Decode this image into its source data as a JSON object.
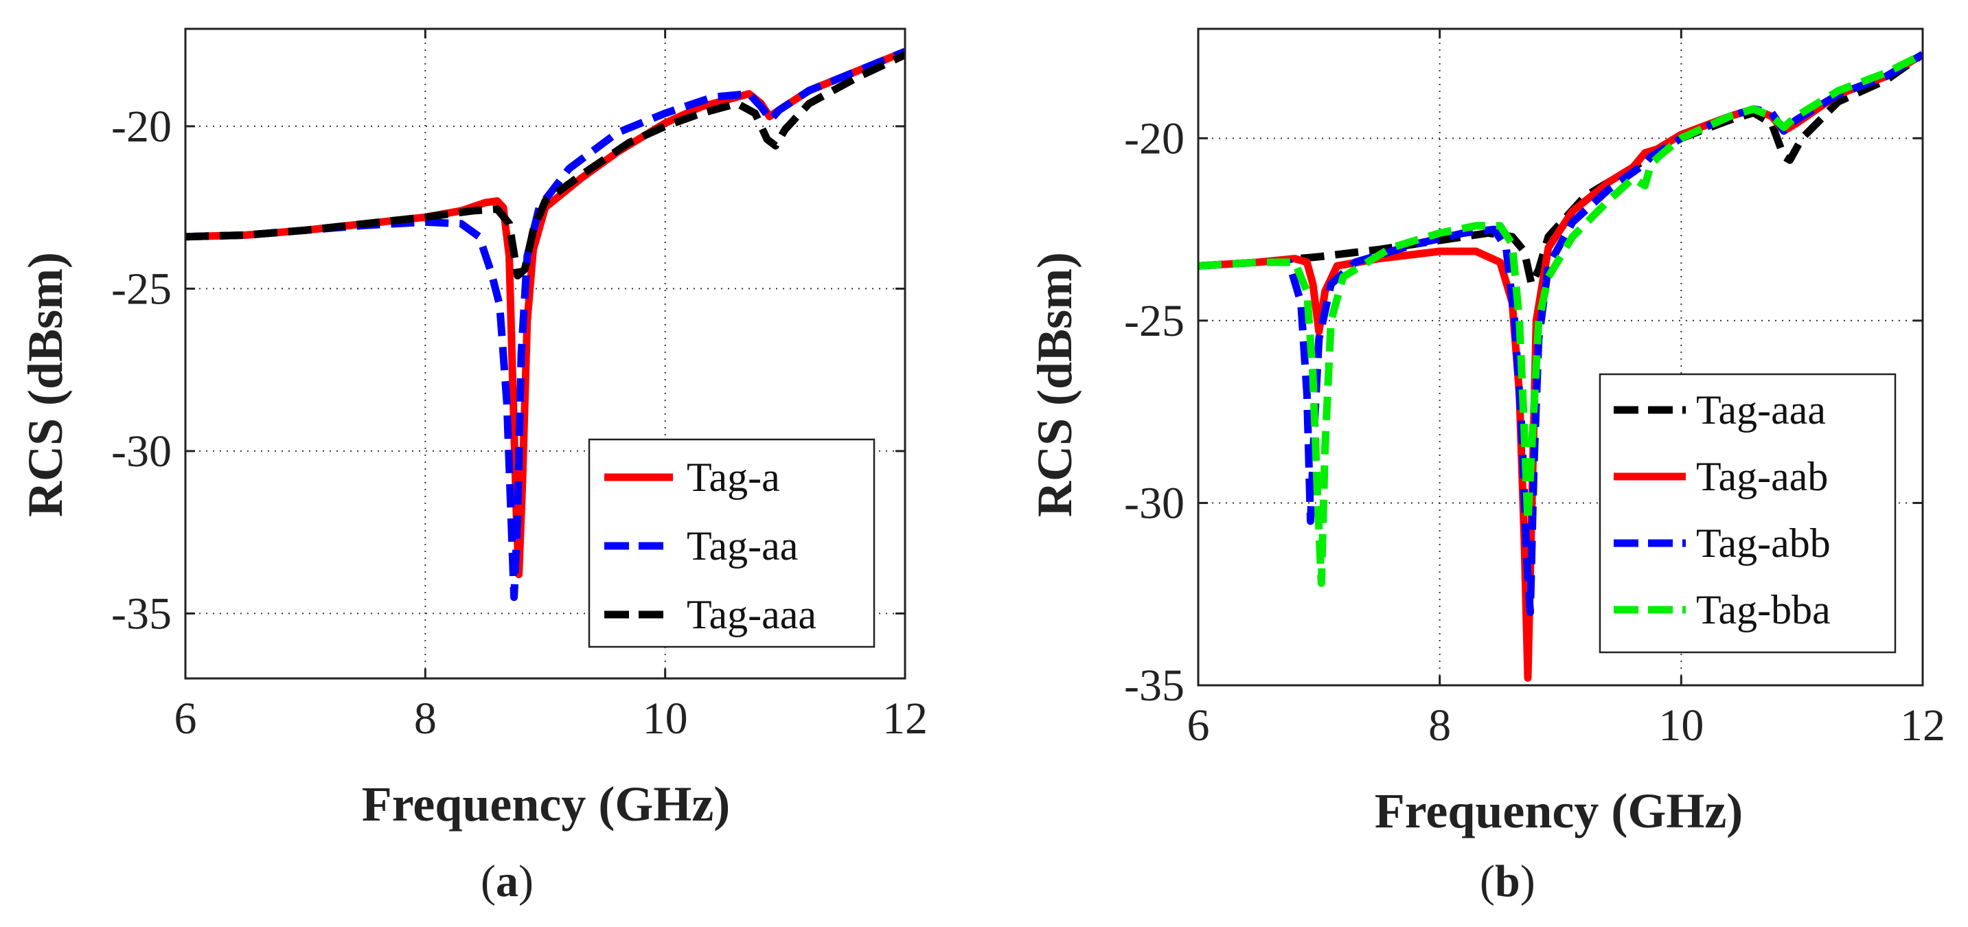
{
  "colors": {
    "red": "#ff0000",
    "blue": "#0000ff",
    "black": "#000000",
    "green": "#00ee00"
  },
  "chart_data": [
    {
      "type": "line",
      "panel_label": "a",
      "xlabel": "Frequency (GHz)",
      "ylabel": "RCS (dBsm)",
      "xlim": [
        6,
        12
      ],
      "ylim": [
        -37,
        -17
      ],
      "xticks": [
        6,
        8,
        10,
        12
      ],
      "yticks": [
        -20,
        -25,
        -30,
        -35
      ],
      "xtick_labels": [
        "6",
        "8",
        "10",
        "12"
      ],
      "ytick_labels": [
        "-20",
        "-25",
        "-30",
        "-35"
      ],
      "grid": true,
      "legend_position": "bottom-right",
      "series": [
        {
          "name": "Tag-a",
          "color": "#ff0000",
          "style": "solid",
          "points": [
            [
              6,
              -23.4
            ],
            [
              6.5,
              -23.35
            ],
            [
              7,
              -23.2
            ],
            [
              7.5,
              -23.0
            ],
            [
              8,
              -22.8
            ],
            [
              8.3,
              -22.6
            ],
            [
              8.5,
              -22.35
            ],
            [
              8.6,
              -22.3
            ],
            [
              8.65,
              -22.5
            ],
            [
              8.7,
              -24.0
            ],
            [
              8.73,
              -28.0
            ],
            [
              8.76,
              -32.0
            ],
            [
              8.78,
              -33.8
            ],
            [
              8.81,
              -31.0
            ],
            [
              8.85,
              -26.0
            ],
            [
              8.9,
              -23.8
            ],
            [
              9.0,
              -22.5
            ],
            [
              9.3,
              -21.6
            ],
            [
              9.6,
              -20.8
            ],
            [
              10.0,
              -19.9
            ],
            [
              10.3,
              -19.4
            ],
            [
              10.6,
              -19.1
            ],
            [
              10.7,
              -19.0
            ],
            [
              10.8,
              -19.3
            ],
            [
              10.87,
              -19.7
            ],
            [
              10.95,
              -19.5
            ],
            [
              11.2,
              -18.9
            ],
            [
              11.6,
              -18.3
            ],
            [
              12,
              -17.7
            ]
          ]
        },
        {
          "name": "Tag-aa",
          "color": "#0000ff",
          "style": "dashed",
          "points": [
            [
              6,
              -23.4
            ],
            [
              6.5,
              -23.35
            ],
            [
              7,
              -23.2
            ],
            [
              7.5,
              -23.05
            ],
            [
              8,
              -22.95
            ],
            [
              8.3,
              -23.0
            ],
            [
              8.45,
              -23.4
            ],
            [
              8.55,
              -24.5
            ],
            [
              8.62,
              -25.5
            ],
            [
              8.68,
              -28.5
            ],
            [
              8.72,
              -32.5
            ],
            [
              8.74,
              -34.5
            ],
            [
              8.77,
              -32.0
            ],
            [
              8.8,
              -27.0
            ],
            [
              8.85,
              -24.0
            ],
            [
              8.95,
              -22.5
            ],
            [
              9.2,
              -21.3
            ],
            [
              9.6,
              -20.2
            ],
            [
              10.0,
              -19.6
            ],
            [
              10.4,
              -19.1
            ],
            [
              10.7,
              -19.0
            ],
            [
              10.8,
              -19.4
            ],
            [
              10.88,
              -19.8
            ],
            [
              10.95,
              -19.5
            ],
            [
              11.2,
              -18.9
            ],
            [
              11.6,
              -18.3
            ],
            [
              12,
              -17.7
            ]
          ]
        },
        {
          "name": "Tag-aaa",
          "color": "#000000",
          "style": "dashed",
          "points": [
            [
              6,
              -23.4
            ],
            [
              6.5,
              -23.35
            ],
            [
              7,
              -23.2
            ],
            [
              7.5,
              -23.0
            ],
            [
              8,
              -22.8
            ],
            [
              8.4,
              -22.6
            ],
            [
              8.6,
              -22.55
            ],
            [
              8.7,
              -23.0
            ],
            [
              8.77,
              -24.6
            ],
            [
              8.83,
              -24.4
            ],
            [
              8.9,
              -23.2
            ],
            [
              9.0,
              -22.3
            ],
            [
              9.3,
              -21.5
            ],
            [
              9.7,
              -20.5
            ],
            [
              10.0,
              -20.0
            ],
            [
              10.3,
              -19.6
            ],
            [
              10.6,
              -19.3
            ],
            [
              10.75,
              -19.6
            ],
            [
              10.85,
              -20.4
            ],
            [
              10.92,
              -20.6
            ],
            [
              11.0,
              -20.1
            ],
            [
              11.2,
              -19.3
            ],
            [
              11.6,
              -18.5
            ],
            [
              12,
              -17.8
            ]
          ]
        }
      ]
    },
    {
      "type": "line",
      "panel_label": "b",
      "xlabel": "Frequency (GHz)",
      "ylabel": "RCS (dBsm)",
      "xlim": [
        6,
        12
      ],
      "ylim": [
        -35,
        -17
      ],
      "xticks": [
        6,
        8,
        10,
        12
      ],
      "yticks": [
        -20,
        -25,
        -30,
        -35
      ],
      "xtick_labels": [
        "6",
        "8",
        "10",
        "12"
      ],
      "ytick_labels": [
        "-20",
        "-25",
        "-30",
        "-35"
      ],
      "grid": true,
      "legend_position": "bottom-right",
      "series": [
        {
          "name": "Tag-aaa",
          "color": "#000000",
          "style": "dashed",
          "points": [
            [
              6,
              -23.5
            ],
            [
              6.5,
              -23.4
            ],
            [
              7,
              -23.25
            ],
            [
              7.5,
              -23.05
            ],
            [
              8,
              -22.8
            ],
            [
              8.4,
              -22.6
            ],
            [
              8.6,
              -22.7
            ],
            [
              8.7,
              -23.1
            ],
            [
              8.76,
              -24.0
            ],
            [
              8.82,
              -23.6
            ],
            [
              8.9,
              -22.7
            ],
            [
              9.2,
              -21.6
            ],
            [
              9.6,
              -20.8
            ],
            [
              10.0,
              -20.0
            ],
            [
              10.4,
              -19.5
            ],
            [
              10.6,
              -19.3
            ],
            [
              10.75,
              -19.6
            ],
            [
              10.85,
              -20.5
            ],
            [
              10.9,
              -20.6
            ],
            [
              11.0,
              -20.0
            ],
            [
              11.3,
              -19.0
            ],
            [
              11.7,
              -18.4
            ],
            [
              12,
              -17.7
            ]
          ]
        },
        {
          "name": "Tag-aab",
          "color": "#ff0000",
          "style": "solid",
          "points": [
            [
              6,
              -23.5
            ],
            [
              6.5,
              -23.4
            ],
            [
              6.8,
              -23.3
            ],
            [
              6.9,
              -23.4
            ],
            [
              6.95,
              -24.0
            ],
            [
              7.0,
              -25.3
            ],
            [
              7.05,
              -24.2
            ],
            [
              7.15,
              -23.5
            ],
            [
              7.5,
              -23.3
            ],
            [
              8.0,
              -23.1
            ],
            [
              8.3,
              -23.1
            ],
            [
              8.5,
              -23.4
            ],
            [
              8.6,
              -24.5
            ],
            [
              8.66,
              -27.0
            ],
            [
              8.7,
              -31.0
            ],
            [
              8.73,
              -34.8
            ],
            [
              8.76,
              -30.5
            ],
            [
              8.8,
              -25.0
            ],
            [
              8.9,
              -23.0
            ],
            [
              9.1,
              -22.0
            ],
            [
              9.4,
              -21.2
            ],
            [
              9.6,
              -20.8
            ],
            [
              9.7,
              -20.4
            ],
            [
              9.8,
              -20.3
            ],
            [
              10.0,
              -19.9
            ],
            [
              10.4,
              -19.4
            ],
            [
              10.6,
              -19.2
            ],
            [
              10.75,
              -19.4
            ],
            [
              10.85,
              -19.8
            ],
            [
              10.95,
              -19.6
            ],
            [
              11.3,
              -18.8
            ],
            [
              11.7,
              -18.3
            ],
            [
              12,
              -17.7
            ]
          ]
        },
        {
          "name": "Tag-abb",
          "color": "#0000ff",
          "style": "dashed",
          "points": [
            [
              6,
              -23.5
            ],
            [
              6.5,
              -23.4
            ],
            [
              6.75,
              -23.4
            ],
            [
              6.85,
              -24.5
            ],
            [
              6.9,
              -27.0
            ],
            [
              6.93,
              -30.5
            ],
            [
              6.96,
              -28.0
            ],
            [
              7.0,
              -25.5
            ],
            [
              7.1,
              -24.0
            ],
            [
              7.3,
              -23.4
            ],
            [
              7.8,
              -22.9
            ],
            [
              8.2,
              -22.6
            ],
            [
              8.45,
              -22.5
            ],
            [
              8.55,
              -23.0
            ],
            [
              8.62,
              -25.0
            ],
            [
              8.68,
              -28.0
            ],
            [
              8.72,
              -31.5
            ],
            [
              8.75,
              -33.0
            ],
            [
              8.78,
              -29.0
            ],
            [
              8.82,
              -25.5
            ],
            [
              8.9,
              -23.5
            ],
            [
              9.1,
              -22.3
            ],
            [
              9.4,
              -21.4
            ],
            [
              9.7,
              -20.7
            ],
            [
              9.75,
              -20.5
            ],
            [
              10.0,
              -20.0
            ],
            [
              10.4,
              -19.4
            ],
            [
              10.6,
              -19.2
            ],
            [
              10.75,
              -19.3
            ],
            [
              10.85,
              -19.8
            ],
            [
              10.95,
              -19.5
            ],
            [
              11.3,
              -18.8
            ],
            [
              11.7,
              -18.3
            ],
            [
              12,
              -17.7
            ]
          ]
        },
        {
          "name": "Tag-bba",
          "color": "#00ee00",
          "style": "dashed",
          "points": [
            [
              6,
              -23.5
            ],
            [
              6.5,
              -23.4
            ],
            [
              6.8,
              -23.4
            ],
            [
              6.9,
              -24.2
            ],
            [
              6.95,
              -26.5
            ],
            [
              6.99,
              -30.0
            ],
            [
              7.02,
              -32.2
            ],
            [
              7.05,
              -28.5
            ],
            [
              7.1,
              -25.0
            ],
            [
              7.2,
              -23.8
            ],
            [
              7.6,
              -23.0
            ],
            [
              8.0,
              -22.6
            ],
            [
              8.3,
              -22.4
            ],
            [
              8.5,
              -22.4
            ],
            [
              8.6,
              -22.9
            ],
            [
              8.66,
              -25.0
            ],
            [
              8.7,
              -28.0
            ],
            [
              8.73,
              -30.5
            ],
            [
              8.77,
              -28.0
            ],
            [
              8.82,
              -25.0
            ],
            [
              8.9,
              -23.8
            ],
            [
              9.1,
              -22.7
            ],
            [
              9.4,
              -21.7
            ],
            [
              9.6,
              -21.1
            ],
            [
              9.7,
              -21.3
            ],
            [
              9.75,
              -20.7
            ],
            [
              9.85,
              -20.4
            ],
            [
              10.0,
              -20.0
            ],
            [
              10.4,
              -19.4
            ],
            [
              10.6,
              -19.2
            ],
            [
              10.75,
              -19.4
            ],
            [
              10.85,
              -19.7
            ],
            [
              10.95,
              -19.4
            ],
            [
              11.3,
              -18.7
            ],
            [
              11.7,
              -18.2
            ],
            [
              12,
              -17.7
            ]
          ]
        }
      ]
    }
  ]
}
